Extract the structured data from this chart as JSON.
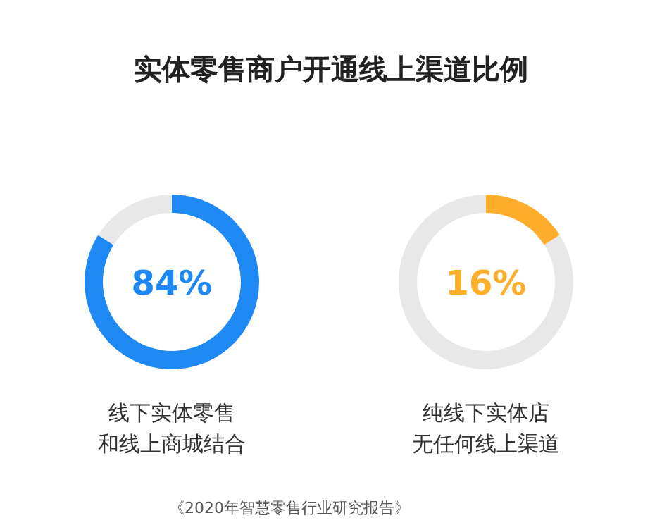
{
  "chart_data": [
    {
      "type": "donut",
      "title": "实体零售商户开通线上渠道比例",
      "xlabel": "线下实体零售和线上商城结合",
      "categories": [
        null,
        null
      ],
      "values": [
        84,
        16
      ],
      "colors": [
        "#1e88f5",
        "#e8e8e8"
      ],
      "value_labels": [
        "84%",
        null
      ]
    },
    {
      "type": "donut",
      "xlabel": "纯线下实体店无任何线上渠道",
      "categories": [
        null,
        null
      ],
      "values": [
        16,
        84
      ],
      "colors": [
        "#ffae2b",
        "#e8e8e8"
      ],
      "value_labels": [
        "16%",
        null
      ],
      "annotations": [
        "《2020年智慧零售行业研究报告》"
      ]
    }
  ]
}
